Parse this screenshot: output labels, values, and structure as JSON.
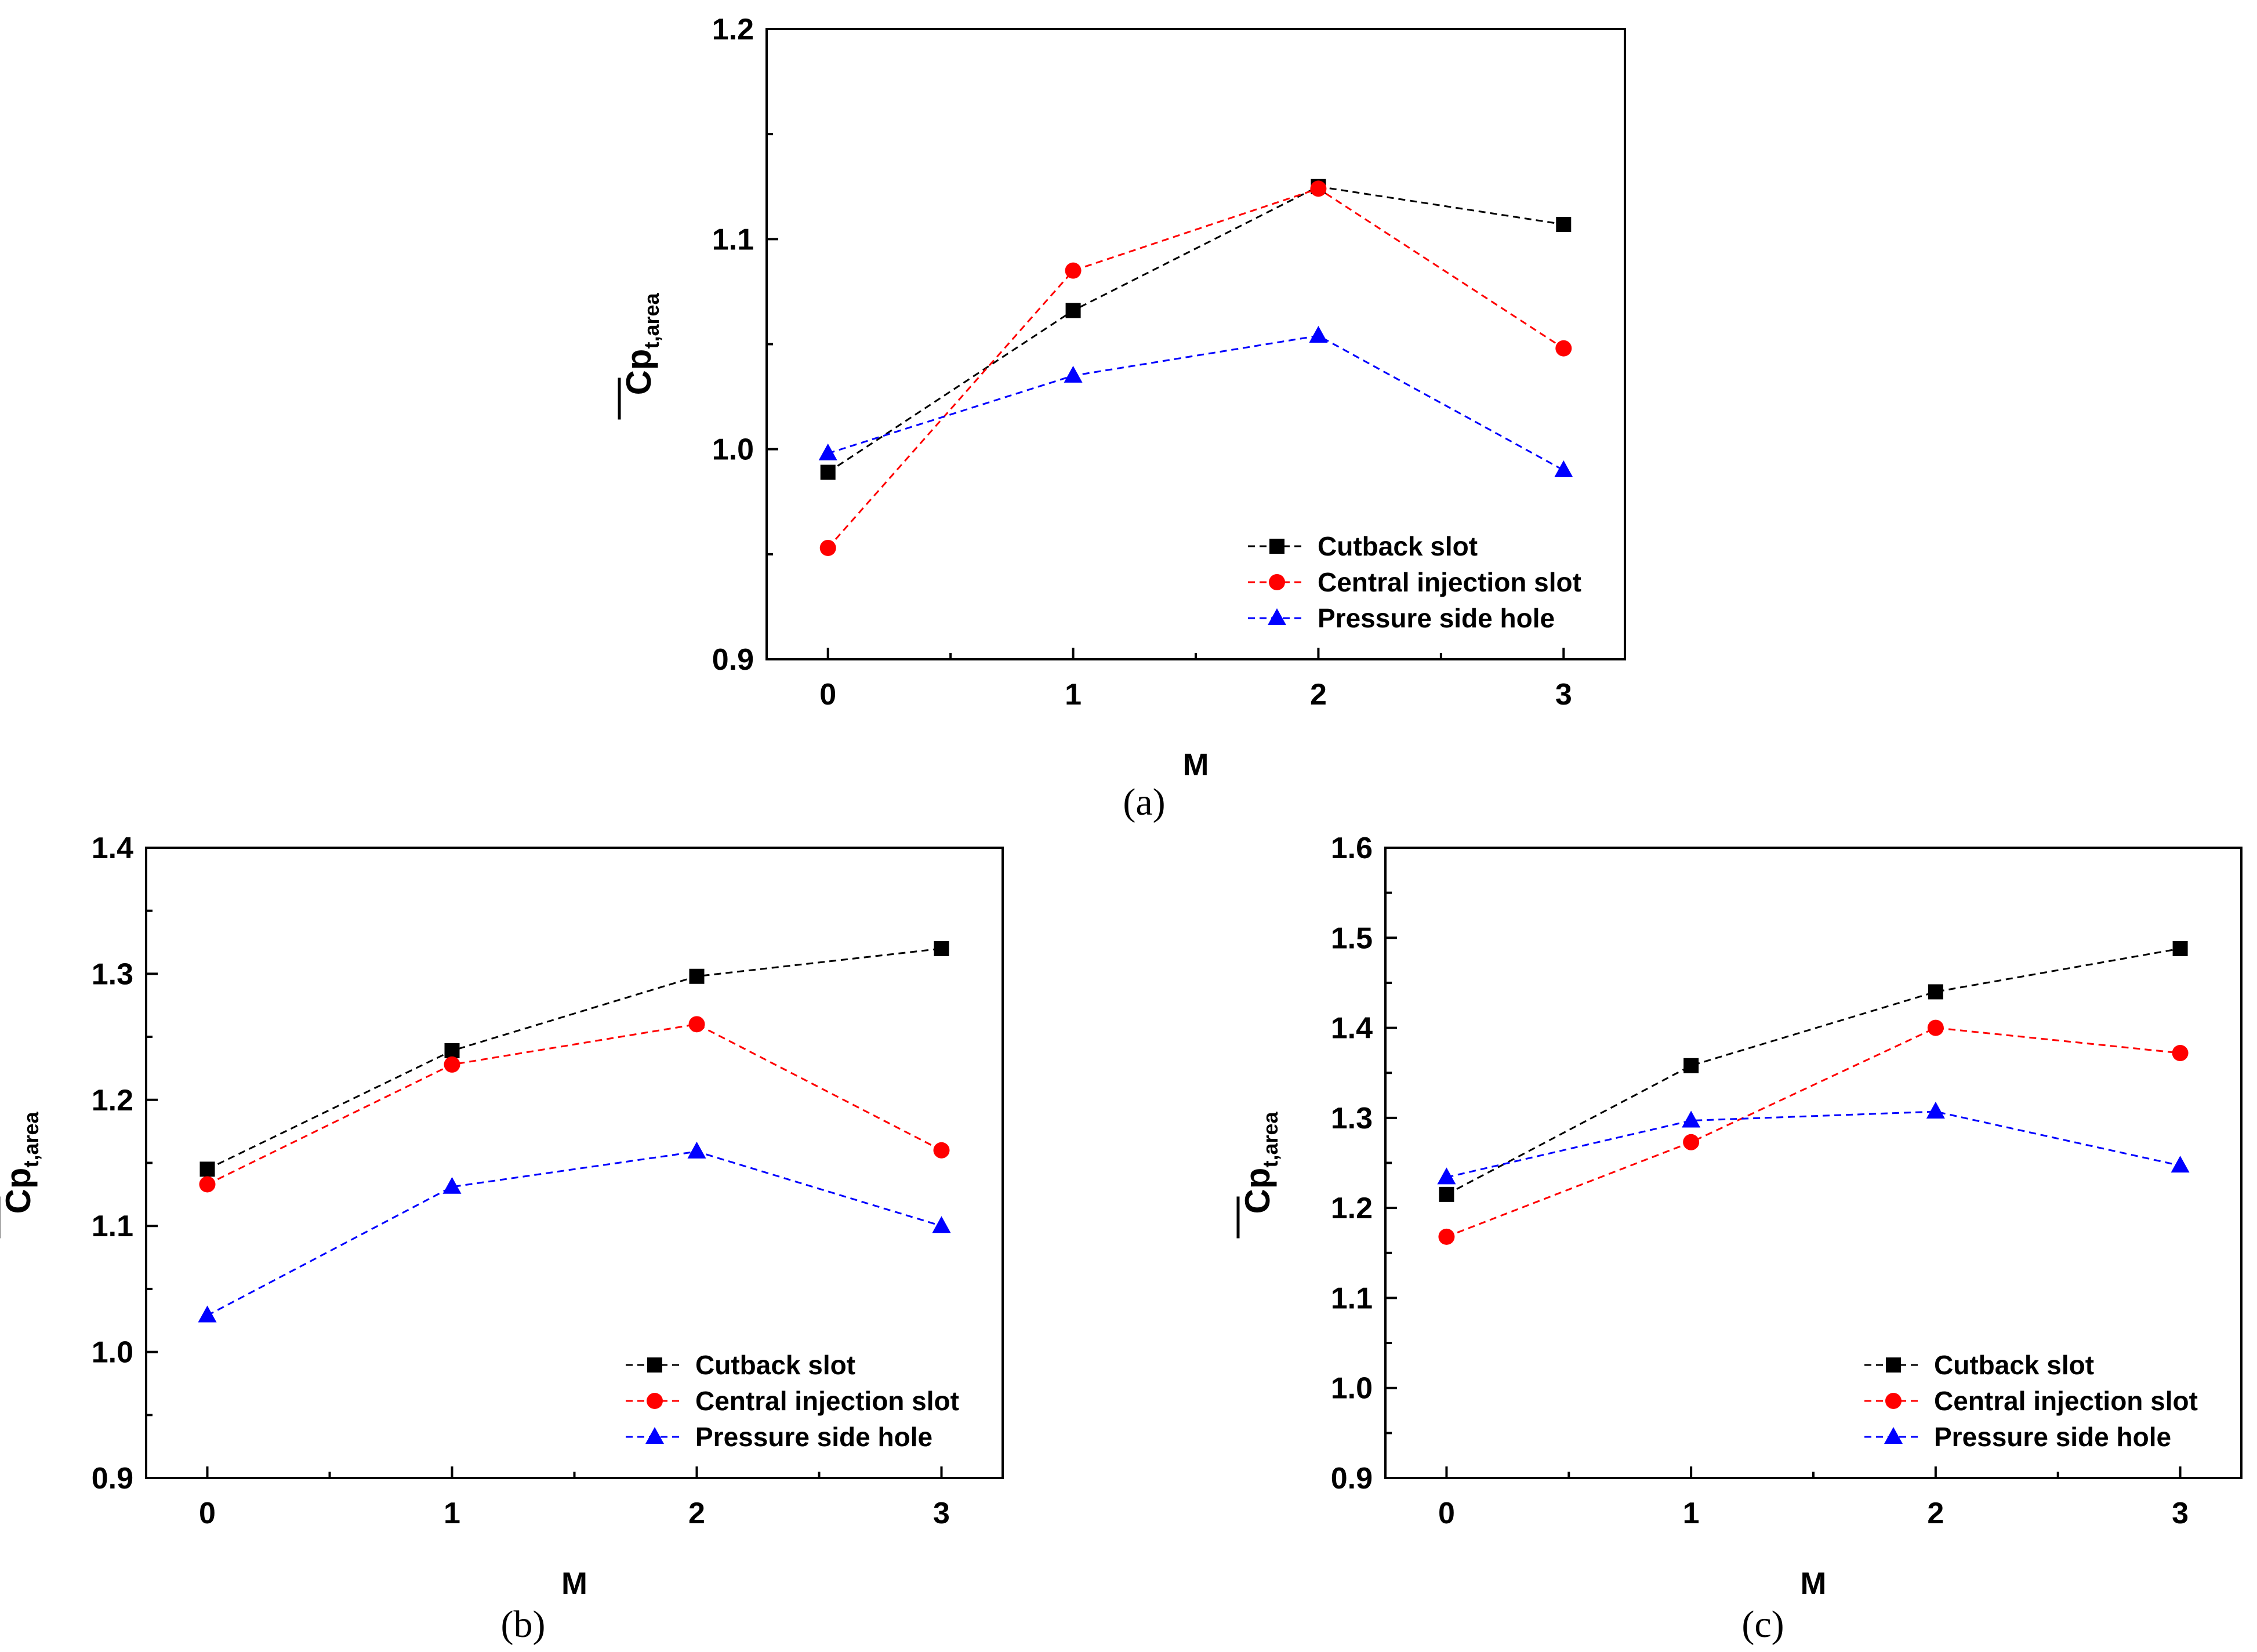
{
  "chart_data": [
    {
      "id": "a",
      "type": "line",
      "panel_label": "(a)",
      "xlabel": "M",
      "ylabel_main": "Cp",
      "ylabel_sub": "t,area",
      "x": [
        0,
        1,
        2,
        3
      ],
      "x_ticks": [
        "0",
        "1",
        "2",
        "3"
      ],
      "xlim": [
        -0.25,
        3.25
      ],
      "ylim": [
        0.9,
        1.2
      ],
      "y_ticks": [
        "0.9",
        "1.0",
        "1.1",
        "1.2"
      ],
      "series": [
        {
          "name": "Cutback slot",
          "color": "#000000",
          "marker": "square",
          "values": [
            0.989,
            1.066,
            1.125,
            1.107
          ]
        },
        {
          "name": "Central injection slot",
          "color": "#ff0000",
          "marker": "circle",
          "values": [
            0.953,
            1.085,
            1.124,
            1.048
          ]
        },
        {
          "name": "Pressure side hole",
          "color": "#0000ff",
          "marker": "triangle",
          "values": [
            0.998,
            1.035,
            1.054,
            0.99
          ]
        }
      ],
      "legend_position": "bottom-right"
    },
    {
      "id": "b",
      "type": "line",
      "panel_label": "(b)",
      "xlabel": "M",
      "ylabel_main": "Cp",
      "ylabel_sub": "t,area",
      "x": [
        0,
        1,
        2,
        3
      ],
      "x_ticks": [
        "0",
        "1",
        "2",
        "3"
      ],
      "xlim": [
        -0.25,
        3.25
      ],
      "ylim": [
        0.9,
        1.4
      ],
      "y_ticks": [
        "0.9",
        "1.0",
        "1.1",
        "1.2",
        "1.3",
        "1.4"
      ],
      "series": [
        {
          "name": "Cutback slot",
          "color": "#000000",
          "marker": "square",
          "values": [
            1.145,
            1.239,
            1.298,
            1.32
          ]
        },
        {
          "name": "Central injection slot",
          "color": "#ff0000",
          "marker": "circle",
          "values": [
            1.133,
            1.228,
            1.26,
            1.16
          ]
        },
        {
          "name": "Pressure side hole",
          "color": "#0000ff",
          "marker": "triangle",
          "values": [
            1.029,
            1.131,
            1.159,
            1.1
          ]
        }
      ],
      "legend_position": "bottom-right"
    },
    {
      "id": "c",
      "type": "line",
      "panel_label": "(c)",
      "xlabel": "M",
      "ylabel_main": "Cp",
      "ylabel_sub": "t,area",
      "x": [
        0,
        1,
        2,
        3
      ],
      "x_ticks": [
        "0",
        "1",
        "2",
        "3"
      ],
      "xlim": [
        -0.25,
        3.25
      ],
      "ylim": [
        0.9,
        1.6
      ],
      "y_ticks": [
        "0.9",
        "1.0",
        "1.1",
        "1.2",
        "1.3",
        "1.4",
        "1.5",
        "1.6"
      ],
      "series": [
        {
          "name": "Cutback slot",
          "color": "#000000",
          "marker": "square",
          "values": [
            1.215,
            1.358,
            1.44,
            1.488
          ]
        },
        {
          "name": "Central injection slot",
          "color": "#ff0000",
          "marker": "circle",
          "values": [
            1.168,
            1.273,
            1.4,
            1.372
          ]
        },
        {
          "name": "Pressure side hole",
          "color": "#0000ff",
          "marker": "triangle",
          "values": [
            1.234,
            1.297,
            1.307,
            1.247
          ]
        }
      ],
      "legend_position": "bottom-right"
    }
  ]
}
